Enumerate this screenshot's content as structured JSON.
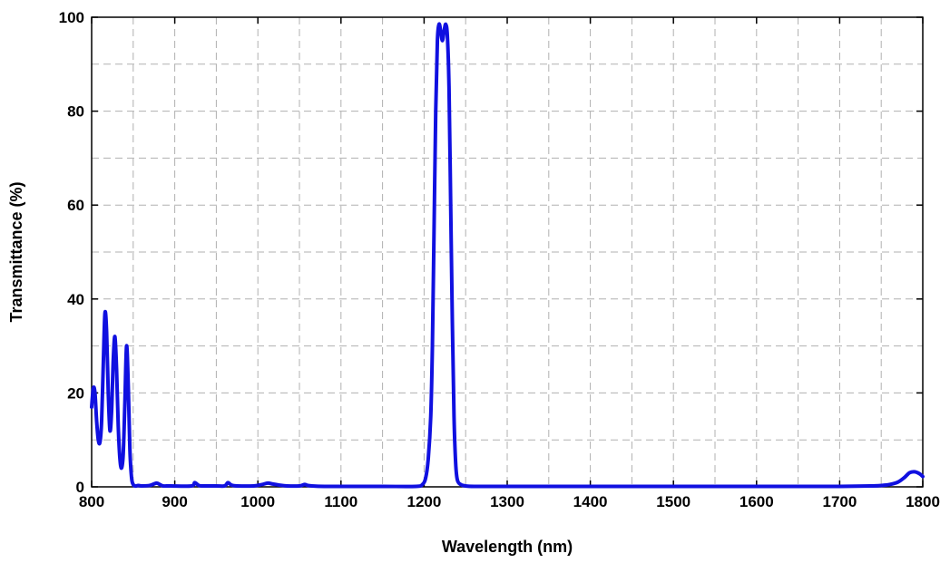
{
  "chart_data": {
    "type": "line",
    "xlabel": "Wavelength (nm)",
    "ylabel": "Transmittance (%)",
    "xlim": [
      800,
      1800
    ],
    "ylim": [
      0,
      100
    ],
    "x_ticks": [
      800,
      900,
      1000,
      1100,
      1200,
      1300,
      1400,
      1500,
      1600,
      1700,
      1800
    ],
    "y_ticks": [
      0,
      20,
      40,
      60,
      80,
      100
    ],
    "x_grid_step": 50,
    "y_grid_step": 10,
    "grid": true,
    "legend": "none",
    "series_color": "#1010e0",
    "series": [
      {
        "x": [
          800,
          802,
          804,
          806,
          808,
          810,
          812,
          814,
          816,
          818,
          820,
          822,
          824,
          826,
          828,
          830,
          832,
          834,
          836,
          838,
          840,
          842,
          844,
          846,
          848,
          850,
          852,
          854,
          856,
          860,
          870,
          878,
          882,
          886,
          895,
          920,
          924,
          928,
          932,
          950,
          960,
          964,
          968,
          975,
          995,
          1005,
          1012,
          1018,
          1025,
          1035,
          1050,
          1056,
          1060,
          1065,
          1080,
          1100,
          1150,
          1190,
          1198,
          1202,
          1205,
          1208,
          1210,
          1212,
          1214,
          1216,
          1218,
          1220,
          1222,
          1224,
          1226,
          1228,
          1230,
          1232,
          1234,
          1236,
          1238,
          1240,
          1244,
          1250,
          1260,
          1300,
          1400,
          1500,
          1600,
          1700,
          1740,
          1750,
          1760,
          1770,
          1778,
          1784,
          1790,
          1796,
          1800
        ],
        "y": [
          17,
          21,
          20,
          14,
          10,
          9.5,
          14,
          26,
          37,
          33,
          20,
          12,
          16,
          27,
          32,
          25,
          13,
          6,
          4,
          7,
          18,
          30,
          22,
          8,
          2,
          0.5,
          0.2,
          0.2,
          0.3,
          0.2,
          0.3,
          0.8,
          0.5,
          0.2,
          0.2,
          0.2,
          0.9,
          0.4,
          0.2,
          0.2,
          0.2,
          0.9,
          0.4,
          0.2,
          0.2,
          0.5,
          0.8,
          0.6,
          0.4,
          0.2,
          0.2,
          0.5,
          0.3,
          0.2,
          0.1,
          0.1,
          0.1,
          0.1,
          0.5,
          2,
          6,
          15,
          30,
          55,
          80,
          95,
          98.5,
          97,
          95,
          97,
          98.5,
          96,
          85,
          60,
          35,
          15,
          5,
          1.5,
          0.5,
          0.2,
          0.1,
          0.1,
          0.1,
          0.1,
          0.1,
          0.1,
          0.2,
          0.3,
          0.5,
          1.0,
          2.0,
          3.0,
          3.2,
          2.8,
          2.2
        ]
      }
    ]
  }
}
